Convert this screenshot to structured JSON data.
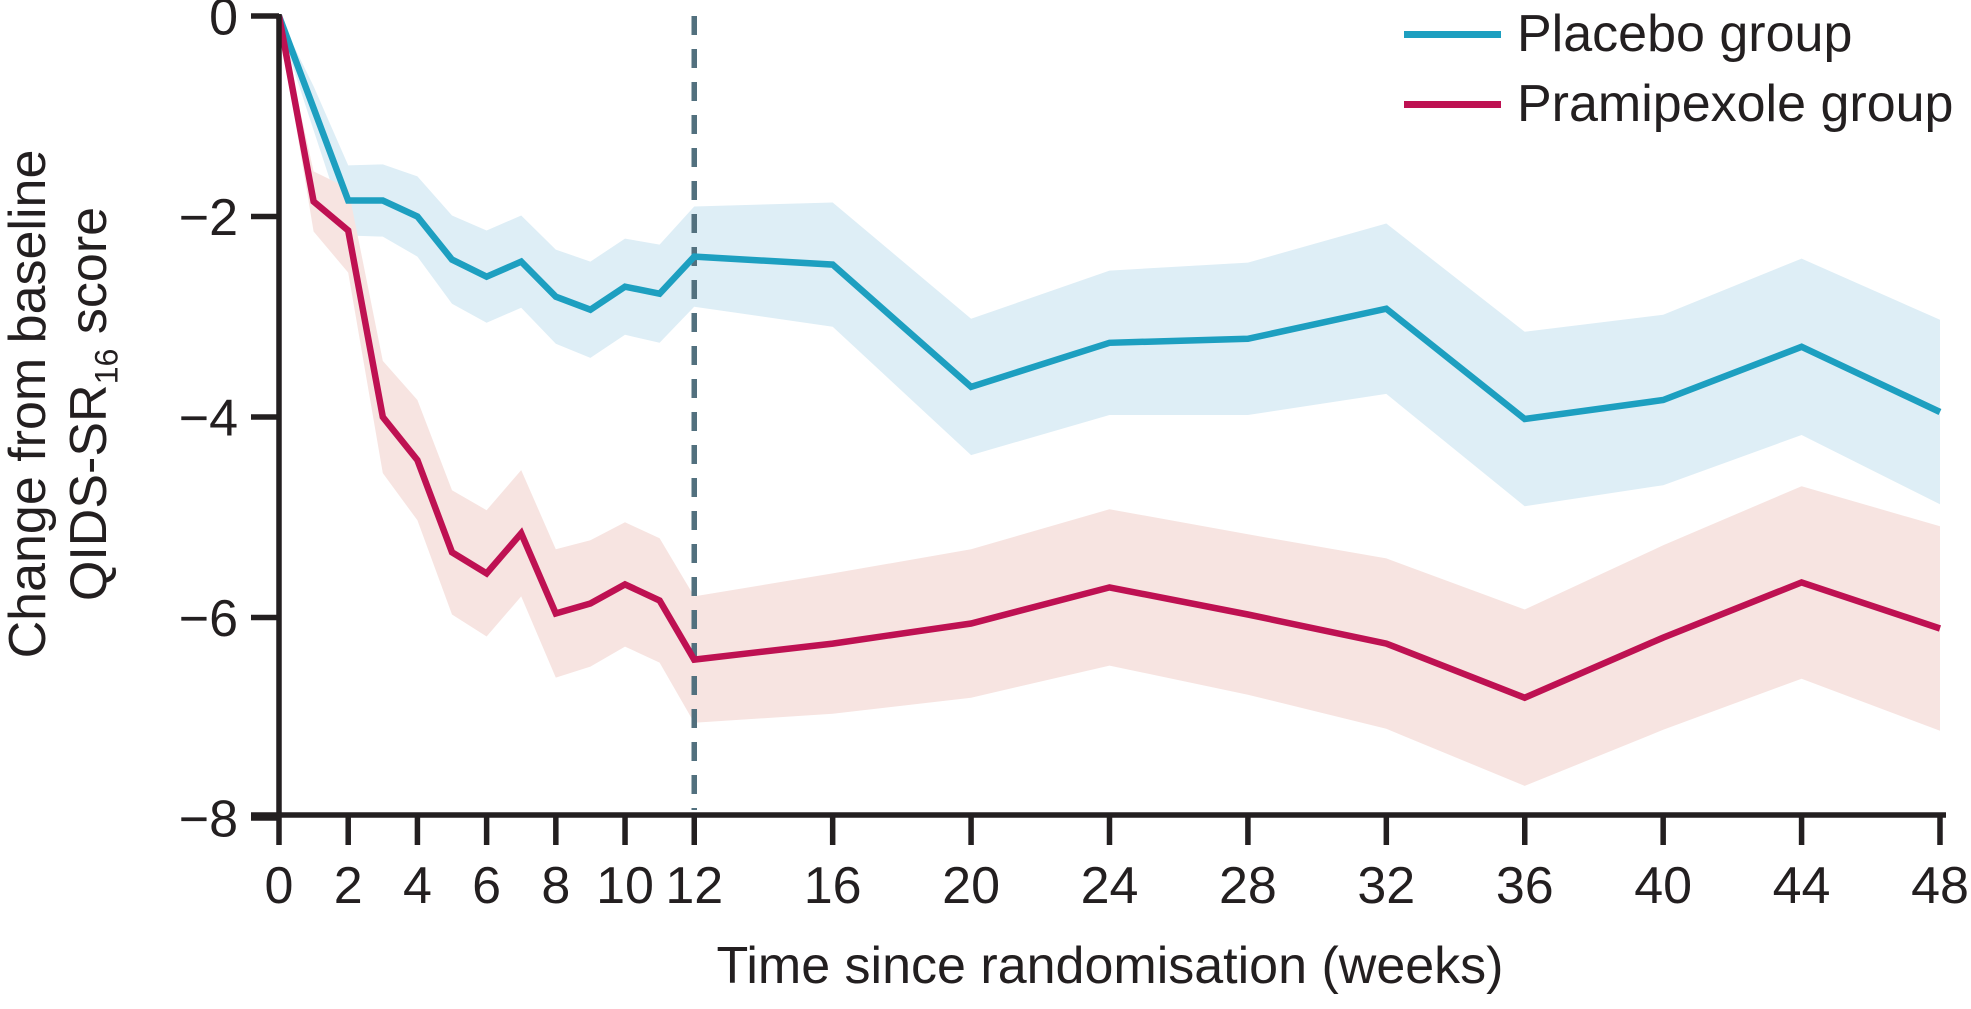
{
  "figure": {
    "x_title": "Time since randomisation (weeks)",
    "y_title_line1": "Change from baseline",
    "y_title_line2_prefix": "QIDS-SR",
    "y_title_line2_sub": "16",
    "y_title_line2_suffix": "score",
    "legend": [
      {
        "label": "Placebo group",
        "color": "#1D9FC0"
      },
      {
        "label": "Pramipexole group",
        "color": "#BE1152"
      }
    ]
  },
  "chart_data": {
    "type": "line",
    "title": "",
    "xlabel": "Time since randomisation (weeks)",
    "ylabel": "Change from baseline QIDS-SR16 score",
    "xlim": [
      0,
      48
    ],
    "ylim": [
      -8,
      0
    ],
    "grid": false,
    "legend_position": "top-right",
    "reference_line_x": 12,
    "reference_line_color": "#52707E",
    "axis_color": "#231f20",
    "x": [
      0,
      1,
      2,
      3,
      4,
      5,
      6,
      7,
      8,
      9,
      10,
      11,
      12,
      16,
      20,
      24,
      28,
      32,
      36,
      40,
      44,
      48
    ],
    "x_ticks": [
      0,
      2,
      4,
      6,
      8,
      10,
      12,
      16,
      20,
      24,
      28,
      32,
      36,
      40,
      44,
      48
    ],
    "x_tick_labels": [
      "0",
      "2",
      "4",
      "6",
      "8",
      "10",
      "12",
      "16",
      "20",
      "24",
      "28",
      "32",
      "36",
      "40",
      "44",
      "48"
    ],
    "y_ticks": [
      0,
      -2,
      -4,
      -6,
      -8
    ],
    "y_tick_labels": [
      "0",
      "−2",
      "−4",
      "−6",
      "−8"
    ],
    "series": [
      {
        "name": "Placebo group",
        "color": "#1D9FC0",
        "band_color": "#DEEEF6",
        "values": [
          0,
          -0.92,
          -1.84,
          -1.84,
          -2.0,
          -2.43,
          -2.6,
          -2.45,
          -2.8,
          -2.93,
          -2.7,
          -2.77,
          -2.4,
          -2.48,
          -3.7,
          -3.26,
          -3.22,
          -2.92,
          -4.02,
          -3.83,
          -3.3,
          -3.95
        ],
        "upper": [
          0,
          -0.7,
          -1.49,
          -1.48,
          -1.6,
          -1.99,
          -2.14,
          -1.99,
          -2.33,
          -2.45,
          -2.22,
          -2.28,
          -1.9,
          -1.86,
          -3.02,
          -2.54,
          -2.46,
          -2.07,
          -3.15,
          -2.98,
          -2.42,
          -3.03
        ],
        "lower": [
          -0.08,
          -1.14,
          -2.19,
          -2.2,
          -2.4,
          -2.87,
          -3.06,
          -2.91,
          -3.27,
          -3.41,
          -3.18,
          -3.26,
          -2.9,
          -3.1,
          -4.38,
          -3.98,
          -3.98,
          -3.77,
          -4.89,
          -4.68,
          -4.18,
          -4.87
        ]
      },
      {
        "name": "Pramipexole group",
        "color": "#BE1152",
        "band_color": "#F7E4E1",
        "values": [
          0,
          -1.85,
          -2.14,
          -4.0,
          -4.43,
          -5.35,
          -5.56,
          -5.16,
          -5.96,
          -5.86,
          -5.67,
          -5.83,
          -6.42,
          -6.26,
          -6.06,
          -5.7,
          -5.97,
          -6.26,
          -6.8,
          -6.2,
          -5.65,
          -6.11
        ],
        "upper": [
          0,
          -1.55,
          -1.72,
          -3.44,
          -3.83,
          -4.73,
          -4.93,
          -4.53,
          -5.32,
          -5.23,
          -5.05,
          -5.21,
          -5.79,
          -5.56,
          -5.32,
          -4.92,
          -5.17,
          -5.41,
          -5.92,
          -5.28,
          -4.69,
          -5.09
        ],
        "lower": [
          -0.08,
          -2.15,
          -2.56,
          -4.56,
          -5.03,
          -5.97,
          -6.19,
          -5.79,
          -6.6,
          -6.49,
          -6.29,
          -6.45,
          -7.05,
          -6.96,
          -6.8,
          -6.48,
          -6.77,
          -7.11,
          -7.68,
          -7.12,
          -6.61,
          -7.13
        ]
      }
    ]
  }
}
